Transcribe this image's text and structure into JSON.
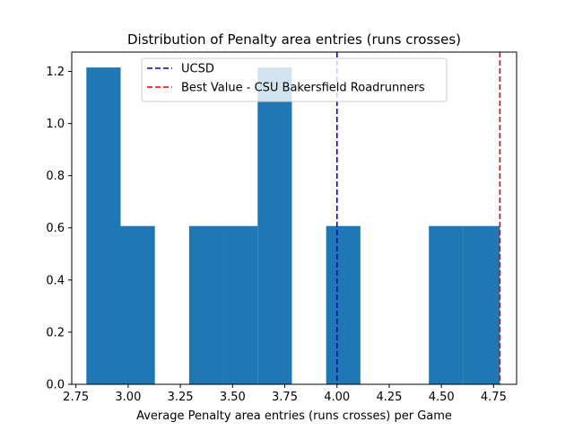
{
  "chart_data": {
    "type": "bar",
    "title": "Distribution of Penalty area entries (runs crosses)",
    "xlabel": "Average Penalty area entries (runs crosses) per Game",
    "ylabel": "",
    "xlim": [
      2.73,
      4.86
    ],
    "ylim": [
      0,
      1.274
    ],
    "bar_color": "#1f77b4",
    "bins": [
      {
        "x0": 2.8,
        "x1": 2.964,
        "value": 1.215
      },
      {
        "x0": 2.964,
        "x1": 3.128,
        "value": 0.607
      },
      {
        "x0": 3.128,
        "x1": 3.292,
        "value": 0.0
      },
      {
        "x0": 3.292,
        "x1": 3.456,
        "value": 0.607
      },
      {
        "x0": 3.456,
        "x1": 3.62,
        "value": 0.607
      },
      {
        "x0": 3.62,
        "x1": 3.784,
        "value": 1.215
      },
      {
        "x0": 3.784,
        "x1": 3.948,
        "value": 0.0
      },
      {
        "x0": 3.948,
        "x1": 4.112,
        "value": 0.607
      },
      {
        "x0": 4.112,
        "x1": 4.276,
        "value": 0.0
      },
      {
        "x0": 4.276,
        "x1": 4.44,
        "value": 0.0
      },
      {
        "x0": 4.44,
        "x1": 4.604,
        "value": 0.607
      },
      {
        "x0": 4.604,
        "x1": 4.78,
        "value": 0.607
      }
    ],
    "xticks": [
      {
        "value": 2.75,
        "label": "2.75"
      },
      {
        "value": 3.0,
        "label": "3.00"
      },
      {
        "value": 3.25,
        "label": "3.25"
      },
      {
        "value": 3.5,
        "label": "3.50"
      },
      {
        "value": 3.75,
        "label": "3.75"
      },
      {
        "value": 4.0,
        "label": "4.00"
      },
      {
        "value": 4.25,
        "label": "4.25"
      },
      {
        "value": 4.5,
        "label": "4.50"
      },
      {
        "value": 4.75,
        "label": "4.75"
      }
    ],
    "yticks": [
      {
        "value": 0.0,
        "label": "0.0"
      },
      {
        "value": 0.2,
        "label": "0.2"
      },
      {
        "value": 0.4,
        "label": "0.4"
      },
      {
        "value": 0.6,
        "label": "0.6"
      },
      {
        "value": 0.8,
        "label": "0.8"
      },
      {
        "value": 1.0,
        "label": "1.0"
      },
      {
        "value": 1.2,
        "label": "1.2"
      }
    ],
    "reference_lines": [
      {
        "name": "UCSD",
        "x": 4.0,
        "color": "#0000cc"
      },
      {
        "name": "Best Value - CSU Bakersfield Roadrunners",
        "x": 4.78,
        "color": "#ee0000"
      }
    ],
    "grid": false,
    "legend_position": "top-center"
  }
}
